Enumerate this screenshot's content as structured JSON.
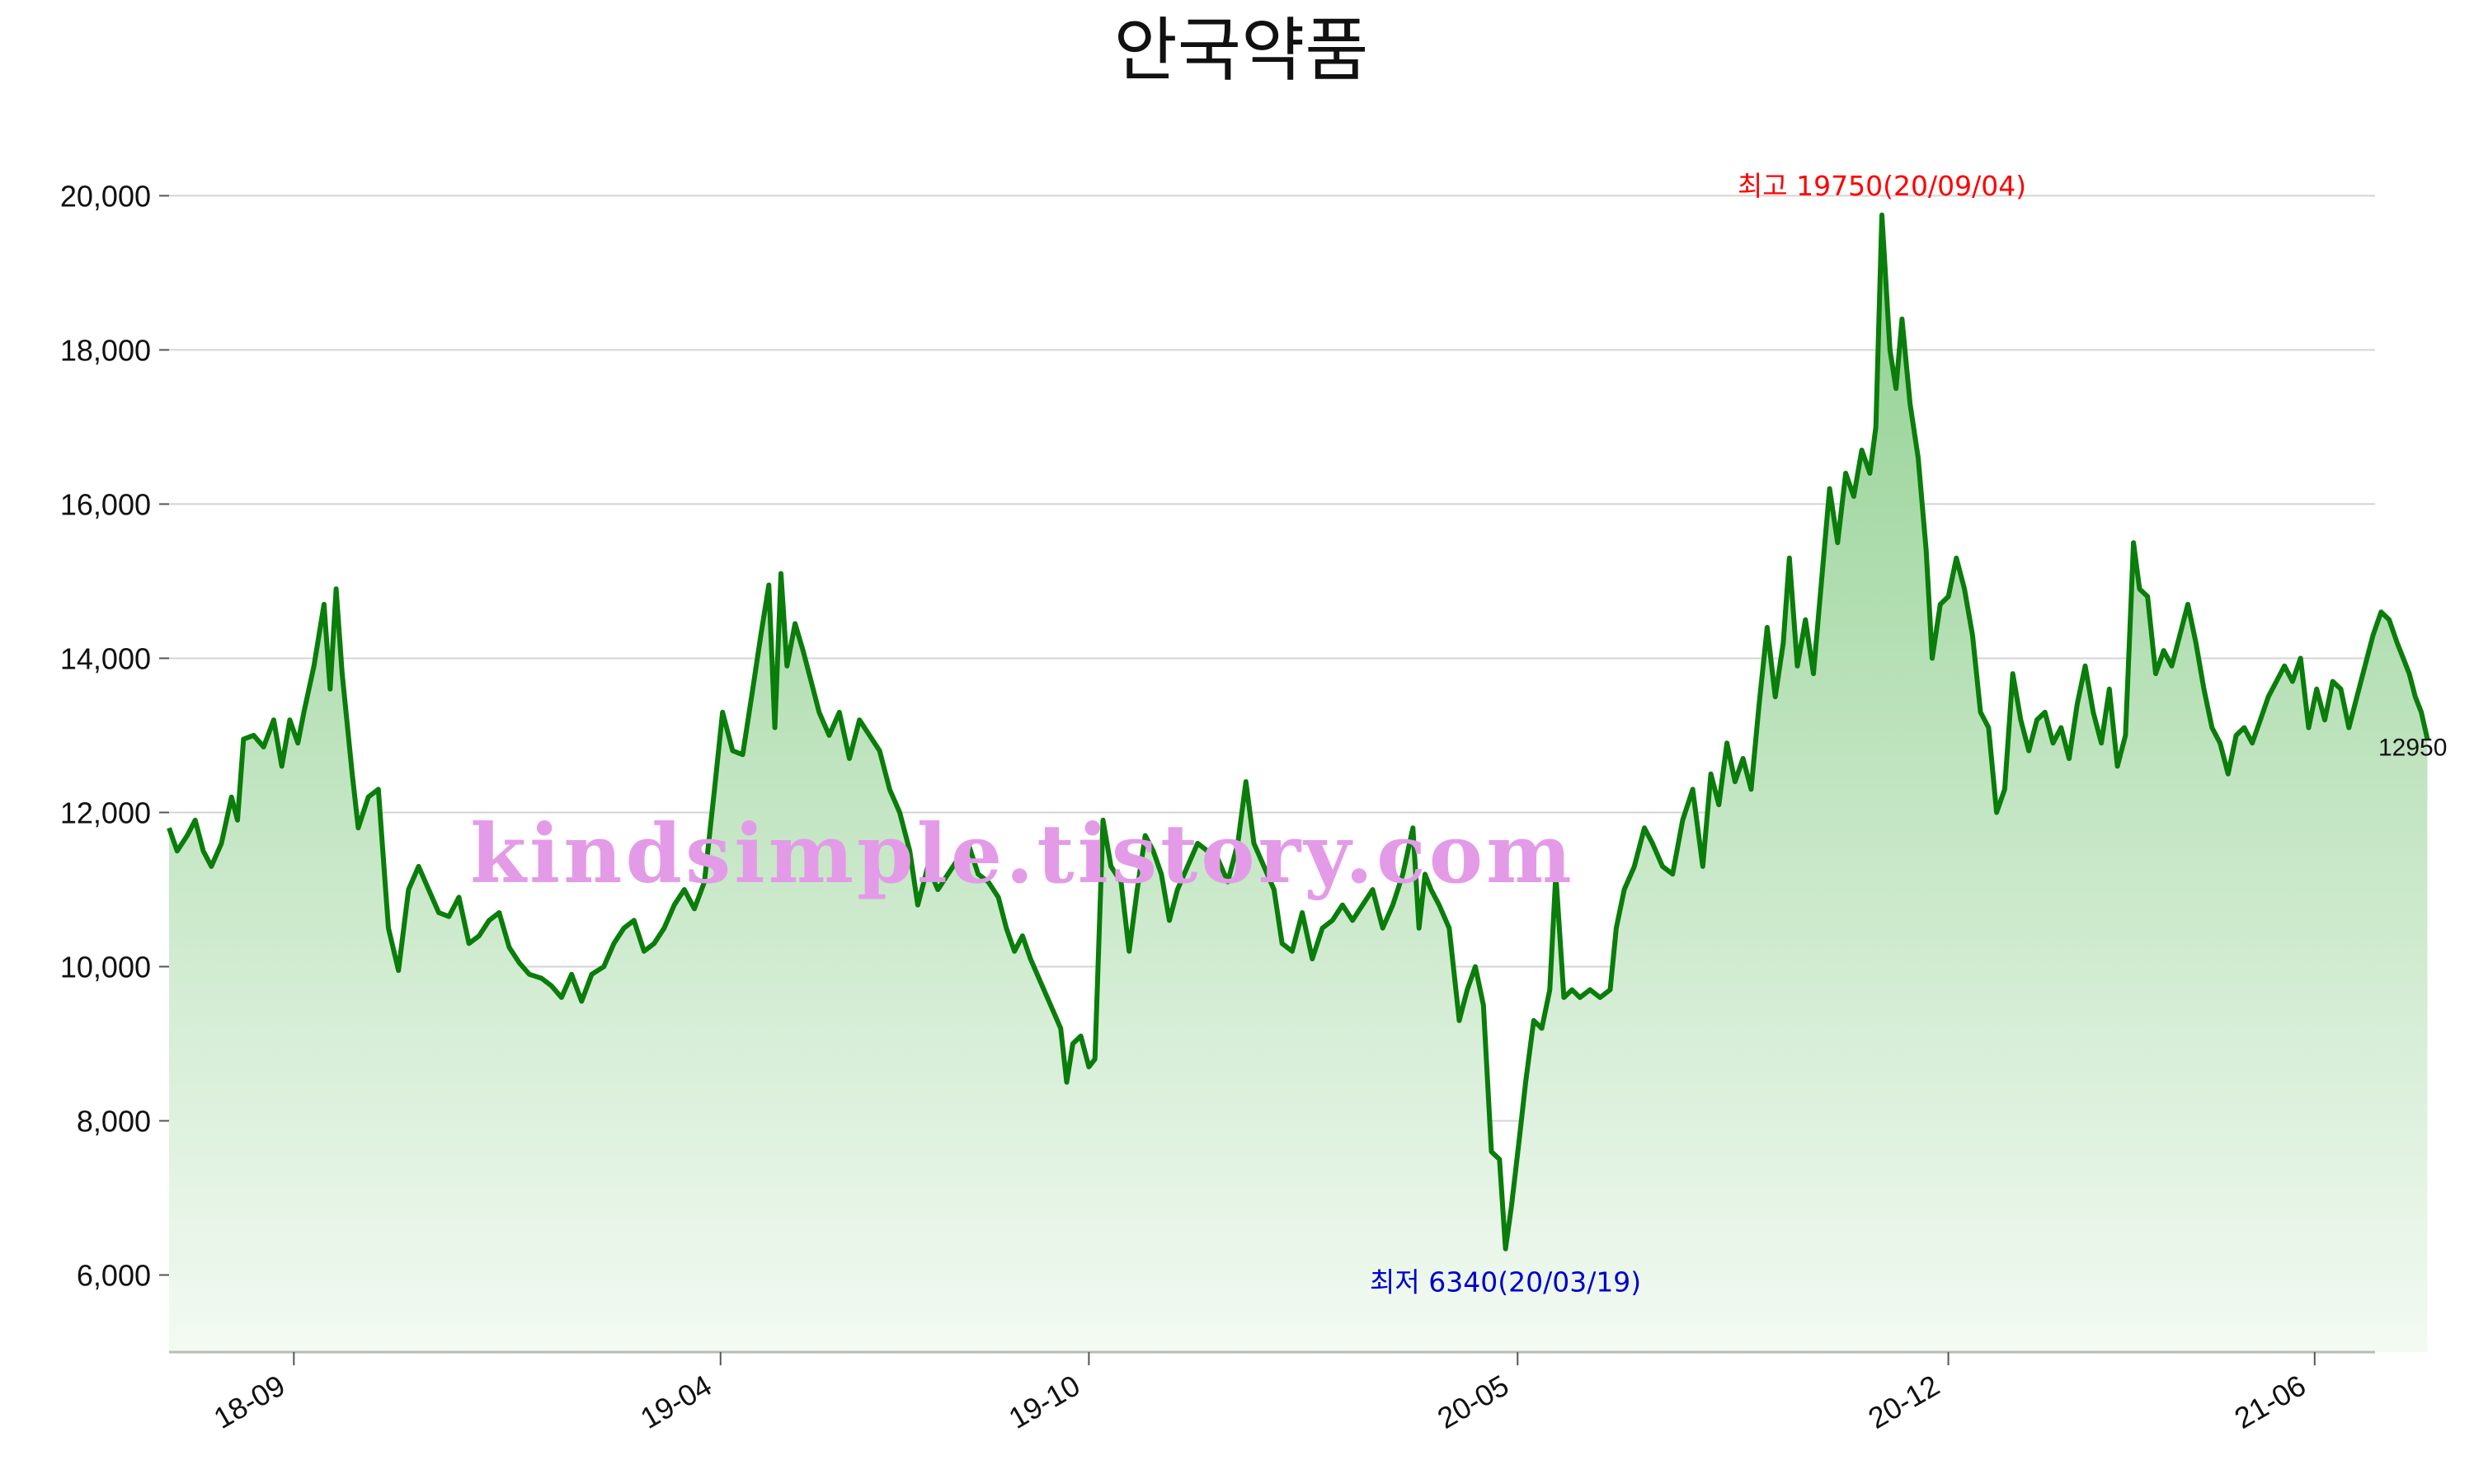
{
  "chart_data": {
    "type": "area",
    "title": "안국약품",
    "xlabel": "",
    "ylabel": "",
    "ylim": [
      5000,
      20400
    ],
    "grid": true,
    "y_ticks": [
      6000,
      8000,
      10000,
      12000,
      14000,
      16000,
      18000,
      20000
    ],
    "y_tick_labels": [
      "6,000",
      "8,000",
      "10,000",
      "12,000",
      "14,000",
      "16,000",
      "18,000",
      "20,000"
    ],
    "x_ticks": [
      "18-09",
      "19-04",
      "19-10",
      "20-05",
      "20-12",
      "21-06"
    ],
    "x_range": [
      "2018-07",
      "2021-07"
    ],
    "colors": {
      "line": "#0a7d0a",
      "fill_top": "#8fcf8f",
      "fill_bottom": "#f3faf3",
      "grid": "#d4d4d4",
      "max": "#ff0000",
      "min": "#0000cc",
      "watermark": "#e39be8"
    },
    "series": [
      {
        "values": [
          [
            "2018-07-01",
            11800
          ],
          [
            "2018-07-05",
            11500
          ],
          [
            "2018-07-10",
            11700
          ],
          [
            "2018-07-14",
            11900
          ],
          [
            "2018-07-18",
            11500
          ],
          [
            "2018-07-22",
            11300
          ],
          [
            "2018-07-27",
            11600
          ],
          [
            "2018-08-01",
            12200
          ],
          [
            "2018-08-04",
            11900
          ],
          [
            "2018-08-07",
            12950
          ],
          [
            "2018-08-12",
            13000
          ],
          [
            "2018-08-17",
            12850
          ],
          [
            "2018-08-22",
            13200
          ],
          [
            "2018-08-26",
            12600
          ],
          [
            "2018-08-30",
            13200
          ],
          [
            "2018-09-03",
            12900
          ],
          [
            "2018-09-06",
            13300
          ],
          [
            "2018-09-11",
            13900
          ],
          [
            "2018-09-16",
            14700
          ],
          [
            "2018-09-19",
            13600
          ],
          [
            "2018-09-22",
            14900
          ],
          [
            "2018-09-25",
            13800
          ],
          [
            "2018-09-30",
            12500
          ],
          [
            "2018-10-03",
            11800
          ],
          [
            "2018-10-08",
            12200
          ],
          [
            "2018-10-13",
            12300
          ],
          [
            "2018-10-18",
            10500
          ],
          [
            "2018-10-23",
            9950
          ],
          [
            "2018-10-28",
            11000
          ],
          [
            "2018-11-02",
            11300
          ],
          [
            "2018-11-07",
            11000
          ],
          [
            "2018-11-12",
            10700
          ],
          [
            "2018-11-17",
            10650
          ],
          [
            "2018-11-22",
            10900
          ],
          [
            "2018-11-27",
            10300
          ],
          [
            "2018-12-02",
            10400
          ],
          [
            "2018-12-07",
            10600
          ],
          [
            "2018-12-12",
            10700
          ],
          [
            "2018-12-17",
            10250
          ],
          [
            "2018-12-22",
            10050
          ],
          [
            "2018-12-27",
            9900
          ],
          [
            "2019-01-02",
            9850
          ],
          [
            "2019-01-07",
            9750
          ],
          [
            "2019-01-12",
            9600
          ],
          [
            "2019-01-17",
            9900
          ],
          [
            "2019-01-22",
            9550
          ],
          [
            "2019-01-27",
            9900
          ],
          [
            "2019-02-02",
            10000
          ],
          [
            "2019-02-07",
            10300
          ],
          [
            "2019-02-12",
            10500
          ],
          [
            "2019-02-17",
            10600
          ],
          [
            "2019-02-22",
            10200
          ],
          [
            "2019-02-27",
            10300
          ],
          [
            "2019-03-04",
            10500
          ],
          [
            "2019-03-09",
            10800
          ],
          [
            "2019-03-14",
            11000
          ],
          [
            "2019-03-19",
            10750
          ],
          [
            "2019-03-24",
            11100
          ],
          [
            "2019-03-29",
            12300
          ],
          [
            "2019-04-02",
            13300
          ],
          [
            "2019-04-07",
            12800
          ],
          [
            "2019-04-12",
            12750
          ],
          [
            "2019-04-17",
            13600
          ],
          [
            "2019-04-21",
            14300
          ],
          [
            "2019-04-25",
            14950
          ],
          [
            "2019-04-28",
            13100
          ],
          [
            "2019-05-01",
            15100
          ],
          [
            "2019-05-04",
            13900
          ],
          [
            "2019-05-08",
            14450
          ],
          [
            "2019-05-12",
            14100
          ],
          [
            "2019-05-16",
            13700
          ],
          [
            "2019-05-20",
            13300
          ],
          [
            "2019-05-25",
            13000
          ],
          [
            "2019-05-30",
            13300
          ],
          [
            "2019-06-04",
            12700
          ],
          [
            "2019-06-09",
            13200
          ],
          [
            "2019-06-14",
            13000
          ],
          [
            "2019-06-19",
            12800
          ],
          [
            "2019-06-24",
            12300
          ],
          [
            "2019-06-29",
            12000
          ],
          [
            "2019-07-04",
            11500
          ],
          [
            "2019-07-08",
            10800
          ],
          [
            "2019-07-13",
            11300
          ],
          [
            "2019-07-18",
            11000
          ],
          [
            "2019-07-23",
            11200
          ],
          [
            "2019-07-28",
            11400
          ],
          [
            "2019-08-02",
            11600
          ],
          [
            "2019-08-07",
            11200
          ],
          [
            "2019-08-12",
            11100
          ],
          [
            "2019-08-17",
            10900
          ],
          [
            "2019-08-21",
            10500
          ],
          [
            "2019-08-25",
            10200
          ],
          [
            "2019-08-29",
            10400
          ],
          [
            "2019-09-02",
            10100
          ],
          [
            "2019-09-07",
            9800
          ],
          [
            "2019-09-12",
            9500
          ],
          [
            "2019-09-17",
            9200
          ],
          [
            "2019-09-20",
            8500
          ],
          [
            "2019-09-23",
            9000
          ],
          [
            "2019-09-27",
            9100
          ],
          [
            "2019-10-01",
            8700
          ],
          [
            "2019-10-04",
            8800
          ],
          [
            "2019-10-08",
            11900
          ],
          [
            "2019-10-12",
            11300
          ],
          [
            "2019-10-17",
            11100
          ],
          [
            "2019-10-21",
            10200
          ],
          [
            "2019-10-25",
            11000
          ],
          [
            "2019-10-29",
            11700
          ],
          [
            "2019-11-02",
            11500
          ],
          [
            "2019-11-06",
            11200
          ],
          [
            "2019-11-10",
            10600
          ],
          [
            "2019-11-14",
            11000
          ],
          [
            "2019-11-19",
            11300
          ],
          [
            "2019-11-24",
            11600
          ],
          [
            "2019-11-29",
            11500
          ],
          [
            "2019-12-04",
            11400
          ],
          [
            "2019-12-09",
            11100
          ],
          [
            "2019-12-14",
            11600
          ],
          [
            "2019-12-18",
            12400
          ],
          [
            "2019-12-22",
            11600
          ],
          [
            "2019-12-27",
            11300
          ],
          [
            "2020-01-01",
            11000
          ],
          [
            "2020-01-05",
            10300
          ],
          [
            "2020-01-10",
            10200
          ],
          [
            "2020-01-15",
            10700
          ],
          [
            "2020-01-20",
            10100
          ],
          [
            "2020-01-25",
            10500
          ],
          [
            "2020-01-30",
            10600
          ],
          [
            "2020-02-04",
            10800
          ],
          [
            "2020-02-09",
            10600
          ],
          [
            "2020-02-14",
            10800
          ],
          [
            "2020-02-19",
            11000
          ],
          [
            "2020-02-24",
            10500
          ],
          [
            "2020-02-29",
            10800
          ],
          [
            "2020-03-05",
            11200
          ],
          [
            "2020-03-10",
            11800
          ],
          [
            "2020-03-13",
            10500
          ],
          [
            "2020-03-16",
            11200
          ],
          [
            "2020-03-19",
            11000
          ],
          [
            "2020-03-23",
            10800
          ],
          [
            "2020-03-28",
            10500
          ],
          [
            "2020-04-02",
            9300
          ],
          [
            "2020-04-06",
            9700
          ],
          [
            "2020-04-10",
            10000
          ],
          [
            "2020-04-14",
            9500
          ],
          [
            "2020-04-18",
            7600
          ],
          [
            "2020-04-22",
            7500
          ],
          [
            "2020-04-25",
            6340
          ],
          [
            "2020-04-28",
            6900
          ],
          [
            "2020-05-02",
            7800
          ],
          [
            "2020-05-05",
            8500
          ],
          [
            "2020-05-09",
            9300
          ],
          [
            "2020-05-13",
            9200
          ],
          [
            "2020-05-17",
            9700
          ],
          [
            "2020-05-20",
            11200
          ],
          [
            "2020-05-24",
            9600
          ],
          [
            "2020-05-28",
            9700
          ],
          [
            "2020-06-01",
            9600
          ],
          [
            "2020-06-06",
            9700
          ],
          [
            "2020-06-11",
            9600
          ],
          [
            "2020-06-16",
            9700
          ],
          [
            "2020-06-19",
            10500
          ],
          [
            "2020-06-23",
            11000
          ],
          [
            "2020-06-28",
            11300
          ],
          [
            "2020-07-03",
            11800
          ],
          [
            "2020-07-07",
            11600
          ],
          [
            "2020-07-12",
            11300
          ],
          [
            "2020-07-17",
            11200
          ],
          [
            "2020-07-22",
            11900
          ],
          [
            "2020-07-27",
            12300
          ],
          [
            "2020-08-01",
            11300
          ],
          [
            "2020-08-05",
            12500
          ],
          [
            "2020-08-09",
            12100
          ],
          [
            "2020-08-13",
            12900
          ],
          [
            "2020-08-17",
            12400
          ],
          [
            "2020-08-21",
            12700
          ],
          [
            "2020-08-25",
            12300
          ],
          [
            "2020-08-29",
            13400
          ],
          [
            "2020-09-02",
            14400
          ],
          [
            "2020-09-06",
            13500
          ],
          [
            "2020-09-10",
            14200
          ],
          [
            "2020-09-13",
            15300
          ],
          [
            "2020-09-17",
            13900
          ],
          [
            "2020-09-21",
            14500
          ],
          [
            "2020-09-25",
            13800
          ],
          [
            "2020-09-29",
            15000
          ],
          [
            "2020-10-03",
            16200
          ],
          [
            "2020-10-07",
            15500
          ],
          [
            "2020-10-11",
            16400
          ],
          [
            "2020-10-15",
            16100
          ],
          [
            "2020-10-19",
            16700
          ],
          [
            "2020-10-23",
            16400
          ],
          [
            "2020-10-26",
            17000
          ],
          [
            "2020-10-29",
            19750
          ],
          [
            "2020-11-02",
            18000
          ],
          [
            "2020-11-05",
            17500
          ],
          [
            "2020-11-08",
            18400
          ],
          [
            "2020-11-12",
            17300
          ],
          [
            "2020-11-16",
            16600
          ],
          [
            "2020-11-20",
            15400
          ],
          [
            "2020-11-23",
            14000
          ],
          [
            "2020-11-27",
            14700
          ],
          [
            "2020-12-01",
            14800
          ],
          [
            "2020-12-05",
            15300
          ],
          [
            "2020-12-09",
            14900
          ],
          [
            "2020-12-13",
            14300
          ],
          [
            "2020-12-17",
            13300
          ],
          [
            "2020-12-21",
            13100
          ],
          [
            "2020-12-25",
            12000
          ],
          [
            "2020-12-29",
            12300
          ],
          [
            "2021-01-02",
            13800
          ],
          [
            "2021-01-06",
            13200
          ],
          [
            "2021-01-10",
            12800
          ],
          [
            "2021-01-14",
            13200
          ],
          [
            "2021-01-18",
            13300
          ],
          [
            "2021-01-22",
            12900
          ],
          [
            "2021-01-26",
            13100
          ],
          [
            "2021-01-30",
            12700
          ],
          [
            "2021-02-03",
            13400
          ],
          [
            "2021-02-07",
            13900
          ],
          [
            "2021-02-11",
            13300
          ],
          [
            "2021-02-15",
            12900
          ],
          [
            "2021-02-19",
            13600
          ],
          [
            "2021-02-23",
            12600
          ],
          [
            "2021-02-27",
            13000
          ],
          [
            "2021-03-03",
            15500
          ],
          [
            "2021-03-06",
            14900
          ],
          [
            "2021-03-10",
            14800
          ],
          [
            "2021-03-14",
            13800
          ],
          [
            "2021-03-18",
            14100
          ],
          [
            "2021-03-22",
            13900
          ],
          [
            "2021-03-26",
            14300
          ],
          [
            "2021-03-30",
            14700
          ],
          [
            "2021-04-03",
            14200
          ],
          [
            "2021-04-07",
            13600
          ],
          [
            "2021-04-11",
            13100
          ],
          [
            "2021-04-15",
            12900
          ],
          [
            "2021-04-19",
            12500
          ],
          [
            "2021-04-23",
            13000
          ],
          [
            "2021-04-27",
            13100
          ],
          [
            "2021-05-01",
            12900
          ],
          [
            "2021-05-05",
            13200
          ],
          [
            "2021-05-09",
            13500
          ],
          [
            "2021-05-13",
            13700
          ],
          [
            "2021-05-17",
            13900
          ],
          [
            "2021-05-21",
            13700
          ],
          [
            "2021-05-25",
            14000
          ],
          [
            "2021-05-29",
            13100
          ],
          [
            "2021-06-02",
            13600
          ],
          [
            "2021-06-06",
            13200
          ],
          [
            "2021-06-10",
            13700
          ],
          [
            "2021-06-14",
            13600
          ],
          [
            "2021-06-18",
            13100
          ],
          [
            "2021-06-22",
            13500
          ],
          [
            "2021-06-26",
            13900
          ],
          [
            "2021-06-30",
            14300
          ],
          [
            "2021-07-04",
            14600
          ],
          [
            "2021-07-08",
            14500
          ],
          [
            "2021-07-12",
            14200
          ],
          [
            "2021-07-15",
            14000
          ],
          [
            "2021-07-18",
            13800
          ],
          [
            "2021-07-21",
            13500
          ],
          [
            "2021-07-24",
            13300
          ],
          [
            "2021-07-27",
            12950
          ]
        ]
      }
    ],
    "annotations": {
      "max_label": "최고 19750(20/09/04)",
      "min_label": "최저 6340(20/03/19)",
      "last_value_label": "12950",
      "watermark": "kindsimple.tistory.com"
    }
  }
}
